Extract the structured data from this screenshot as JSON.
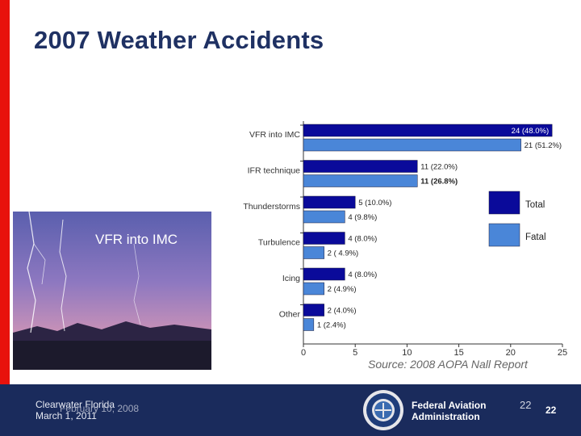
{
  "slide": {
    "title": "2007 Weather Accidents",
    "photo_label": "VFR into IMC",
    "source": "Source:  2008 AOPA Nall Report"
  },
  "footer": {
    "location": "Clearwater Florida",
    "overlap_date": "February 10, 2008",
    "date": "March 1, 2011",
    "org_line1": "Federal Aviation",
    "org_line2": "Administration",
    "page_number_a": "22",
    "page_number_b": "22"
  },
  "colors": {
    "accent_red": "#e8120c",
    "title_blue": "#1f3163",
    "footer_navy": "#1a2b5c",
    "total_bar": "#0a0a9a",
    "fatal_bar": "#4a86d8"
  },
  "chart_data": {
    "type": "bar",
    "orientation": "horizontal",
    "categories": [
      "VFR into IMC",
      "IFR technique",
      "Thunderstorms",
      "Turbulence",
      "Icing",
      "Other"
    ],
    "series": [
      {
        "name": "Total",
        "values": [
          24,
          11,
          5,
          4,
          4,
          2
        ],
        "labels": [
          "24 (48.0%)",
          "11 (22.0%)",
          "5 (10.0%)",
          "4 (8.0%)",
          "4 (8.0%)",
          "2 (4.0%)"
        ]
      },
      {
        "name": "Fatal",
        "values": [
          21,
          11,
          4,
          2,
          2,
          1
        ],
        "labels": [
          "21 (51.2%)",
          "11 (26.8%)",
          "4 (9.8%)",
          "2 ( 4.9%)",
          "2 (4.9%)",
          "1 (2.4%)"
        ]
      }
    ],
    "xlim": [
      0,
      25
    ],
    "xticks": [
      "0",
      "5",
      "10",
      "15",
      "20",
      "25"
    ],
    "highlight_category": "VFR into IMC",
    "legend_position": "right",
    "grid": false
  }
}
